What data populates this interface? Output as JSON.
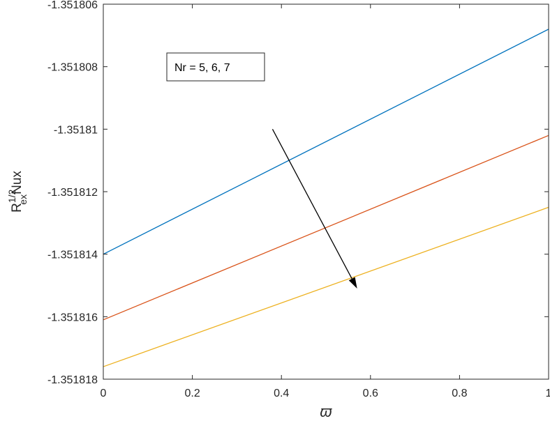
{
  "chart_data": {
    "type": "line",
    "title": "",
    "xlabel": "ϖ",
    "ylabel": {
      "base": "R",
      "superscript": "1/2",
      "subscript": "ex",
      "suffix": "Nux"
    },
    "xlim": [
      0,
      1
    ],
    "ylim": [
      -1.351818,
      -1.351806
    ],
    "x_ticks": [
      0,
      0.2,
      0.4,
      0.6,
      0.8,
      1
    ],
    "x_tick_labels": [
      "0",
      "0.2",
      "0.4",
      "0.6",
      "0.8",
      "1"
    ],
    "y_ticks": [
      -1.351806,
      -1.351808,
      -1.35181,
      -1.351812,
      -1.351814,
      -1.351816,
      -1.351818
    ],
    "y_tick_labels": [
      "-1.351806",
      "-1.351808",
      "-1.35181",
      "-1.351812",
      "-1.351814",
      "-1.351816",
      "-1.351818"
    ],
    "grid": false,
    "series": [
      {
        "color": "#0072BD",
        "x": [
          0,
          1
        ],
        "y": [
          -1.351814,
          -1.3518068
        ]
      },
      {
        "color": "#D95319",
        "x": [
          0,
          1
        ],
        "y": [
          -1.3518161,
          -1.3518102
        ]
      },
      {
        "color": "#EDB120",
        "x": [
          0,
          1
        ],
        "y": [
          -1.3518176,
          -1.3518125
        ]
      }
    ],
    "annotation": {
      "text": "Nr = 5, 6, 7",
      "arrow": {
        "from": [
          0.38,
          -1.35181
        ],
        "to": [
          0.57,
          -1.3518151
        ]
      }
    }
  }
}
